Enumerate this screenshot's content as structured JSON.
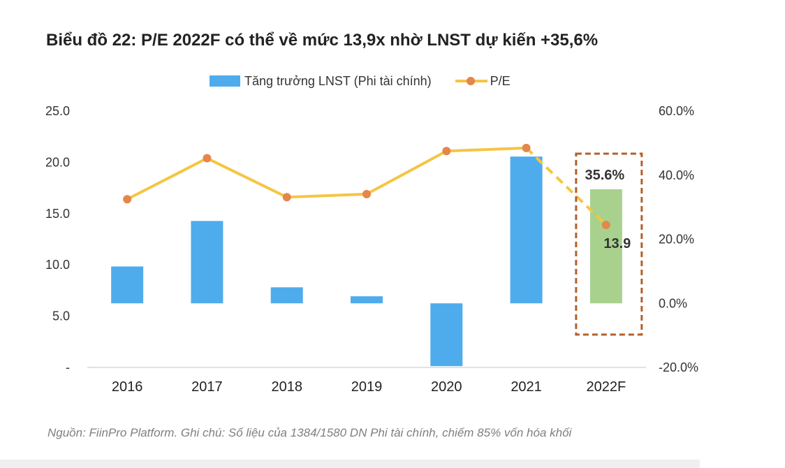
{
  "title": "Biểu đồ 22: P/E 2022F có thể về mức 13,9x nhờ LNST dự kiến +35,6%",
  "legend": {
    "bar_label": "Tăng trưởng LNST (Phi tài chính)",
    "line_label": "P/E"
  },
  "source": "Nguồn: FiinPro Platform. Ghi chú: Số liệu của 1384/1580 DN Phi tài chính, chiếm 85% vốn hóa khối",
  "colors": {
    "bar": "#4facec",
    "bar_forecast": "#a9d18e",
    "line": "#f5c542",
    "marker": "#e3874a",
    "highlight_border": "#b3602a"
  },
  "chart_data": {
    "type": "bar+line",
    "categories": [
      "2016",
      "2017",
      "2018",
      "2019",
      "2020",
      "2021",
      "2022F"
    ],
    "series": [
      {
        "name": "Tăng trưởng LNST (Phi tài chính)",
        "axis": "right",
        "type": "bar",
        "values": [
          11.5,
          25.7,
          5.0,
          2.2,
          -19.6,
          45.8,
          35.6
        ]
      },
      {
        "name": "P/E",
        "axis": "left",
        "type": "line",
        "values": [
          16.4,
          20.4,
          16.6,
          16.9,
          21.1,
          21.4,
          13.9
        ]
      }
    ],
    "left_axis": {
      "ylim": [
        0,
        25
      ],
      "ticks": [
        0,
        5,
        10,
        15,
        20,
        25
      ],
      "tick_labels": [
        "-",
        "5.0",
        "10.0",
        "15.0",
        "20.0",
        "25.0"
      ]
    },
    "right_axis": {
      "ylim": [
        -20,
        60
      ],
      "ticks": [
        -20,
        0,
        20,
        40,
        60
      ],
      "tick_labels": [
        "-20.0%",
        "0.0%",
        "20.0%",
        "40.0%",
        "60.0%"
      ]
    },
    "annotations": {
      "growth_label": "35.6%",
      "pe_label": "13.9"
    },
    "legend_position": "top-center"
  }
}
